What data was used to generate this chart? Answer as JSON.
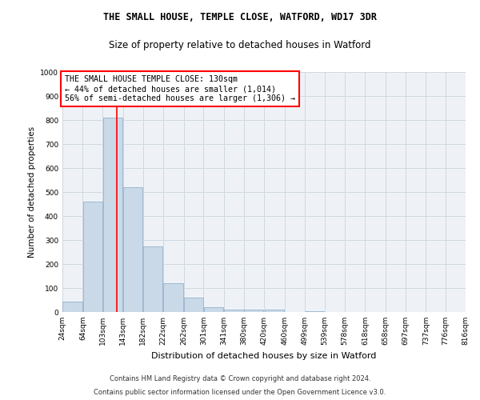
{
  "title1": "THE SMALL HOUSE, TEMPLE CLOSE, WATFORD, WD17 3DR",
  "title2": "Size of property relative to detached houses in Watford",
  "xlabel": "Distribution of detached houses by size in Watford",
  "ylabel": "Number of detached properties",
  "footer1": "Contains HM Land Registry data © Crown copyright and database right 2024.",
  "footer2": "Contains public sector information licensed under the Open Government Licence v3.0.",
  "bar_left_edges": [
    24,
    64,
    103,
    143,
    182,
    222,
    262,
    301,
    341,
    380,
    420,
    460,
    499,
    539,
    578,
    618,
    658,
    697,
    737,
    776
  ],
  "bar_heights": [
    45,
    460,
    810,
    520,
    275,
    120,
    60,
    20,
    10,
    10,
    10,
    0,
    5,
    0,
    0,
    0,
    0,
    0,
    0,
    0
  ],
  "bin_width": 39,
  "bar_color": "#c9d9e8",
  "bar_edge_color": "#a0b8d0",
  "red_line_x": 130,
  "ylim": [
    0,
    1000
  ],
  "yticks": [
    0,
    100,
    200,
    300,
    400,
    500,
    600,
    700,
    800,
    900,
    1000
  ],
  "x_tick_labels": [
    "24sqm",
    "64sqm",
    "103sqm",
    "143sqm",
    "182sqm",
    "222sqm",
    "262sqm",
    "301sqm",
    "341sqm",
    "380sqm",
    "420sqm",
    "460sqm",
    "499sqm",
    "539sqm",
    "578sqm",
    "618sqm",
    "658sqm",
    "697sqm",
    "737sqm",
    "776sqm",
    "816sqm"
  ],
  "annotation_text": "THE SMALL HOUSE TEMPLE CLOSE: 130sqm\n← 44% of detached houses are smaller (1,014)\n56% of semi-detached houses are larger (1,306) →",
  "annotation_box_color": "white",
  "annotation_box_edge_color": "red",
  "grid_color": "#d0d8e0",
  "bg_color": "#eef2f7"
}
